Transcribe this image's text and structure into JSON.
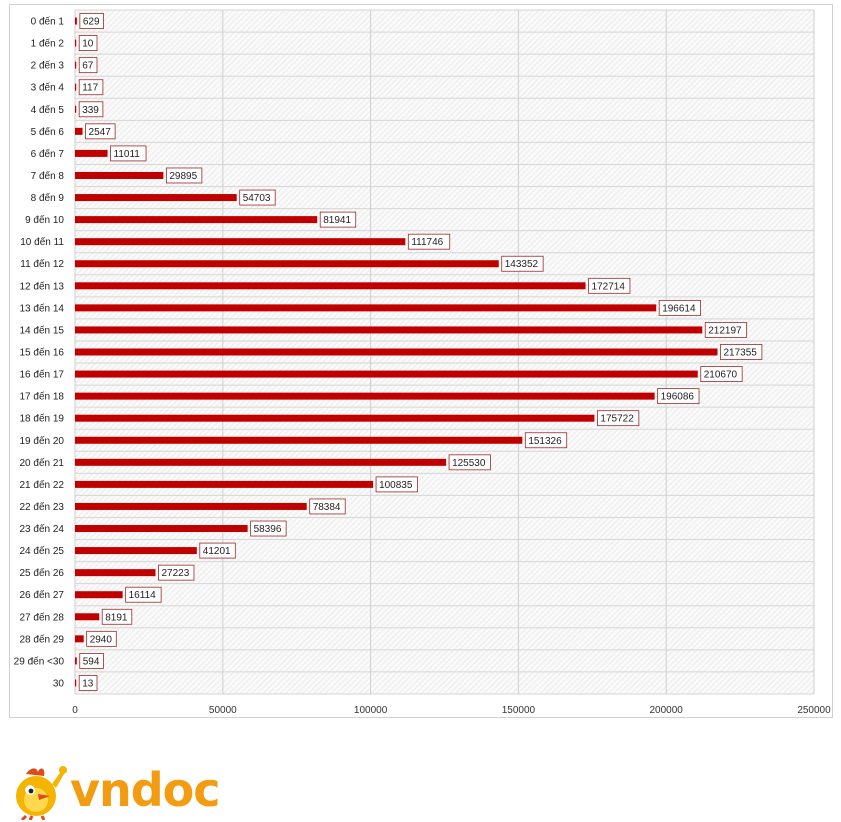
{
  "chart_data": {
    "type": "bar",
    "orientation": "horizontal",
    "categories": [
      "0 đến 1",
      "1 đến 2",
      "2 đến 3",
      "3 đến 4",
      "4 đến 5",
      "5 đến 6",
      "6 đến 7",
      "7 đến 8",
      "8 đến 9",
      "9 đến 10",
      "10 đến 11",
      "11 đến 12",
      "12 đến 13",
      "13 đến 14",
      "14 đến 15",
      "15 đến 16",
      "16 đến 17",
      "17 đến 18",
      "18 đến 19",
      "19 đến 20",
      "20 đến 21",
      "21 đến 22",
      "22 đến 23",
      "23 đến 24",
      "24 đến 25",
      "25 đến 26",
      "26 đến 27",
      "27 đến 28",
      "28 đến 29",
      "29 đến <30",
      "30"
    ],
    "values": [
      629,
      10,
      67,
      117,
      339,
      2547,
      11011,
      29895,
      54703,
      81941,
      111746,
      143352,
      172714,
      196614,
      212197,
      217355,
      210670,
      196086,
      175722,
      151326,
      125530,
      100835,
      78384,
      58396,
      41201,
      27223,
      16114,
      8191,
      2940,
      594,
      13
    ],
    "data_labels": [
      "629",
      "10",
      "67",
      "117",
      "339",
      "2547",
      "11011",
      "29895",
      "54703",
      "81941",
      "111746",
      "143352",
      "172714",
      "196614",
      "212197",
      "217355",
      "210670",
      "196086",
      "175722",
      "151326",
      "125530",
      "100835",
      "78384",
      "58396",
      "41201",
      "27223",
      "16114",
      "8191",
      "2940",
      "594",
      "13"
    ],
    "x_ticks": [
      "0",
      "50000",
      "100000",
      "150000",
      "200000",
      "250000"
    ],
    "xlim": [
      0,
      250000
    ],
    "grid": true,
    "legend": "none",
    "bar_color": "#c00000",
    "title": "",
    "xlabel": "",
    "ylabel": ""
  },
  "logo": {
    "text": "vndoc",
    "color": "#f39c12"
  }
}
